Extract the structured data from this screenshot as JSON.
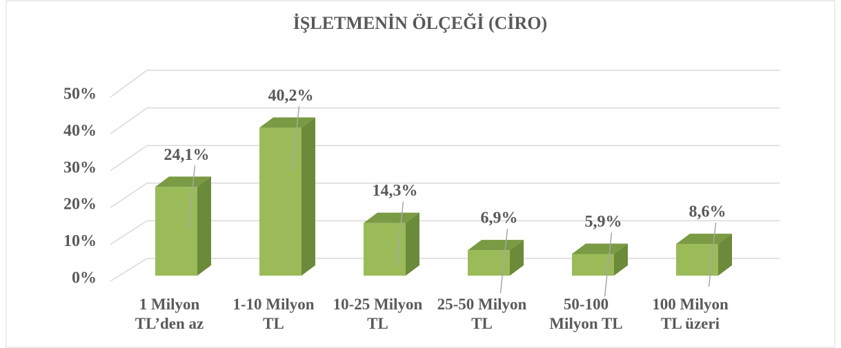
{
  "chart_data": {
    "type": "bar3d",
    "title": "İŞLETMENİN ÖLÇEĞİ (CİRO)",
    "categories": [
      "1 Milyon TL’den az",
      "1-10 Milyon TL",
      "10-25 Milyon TL",
      "25-50 Milyon TL",
      "50-100 Milyon TL",
      "100 Milyon TL üzeri"
    ],
    "values": [
      24.1,
      40.2,
      14.3,
      6.9,
      5.9,
      8.6
    ],
    "value_labels": [
      "24,1%",
      "40,2%",
      "14,3%",
      "6,9%",
      "5,9%",
      "8,6%"
    ],
    "color": "#9bbb59",
    "ylim": [
      0,
      50
    ],
    "yticks": [
      {
        "value": 0,
        "label": "0%"
      },
      {
        "value": 10,
        "label": "10%"
      },
      {
        "value": 20,
        "label": "20%"
      },
      {
        "value": 30,
        "label": "30%"
      },
      {
        "value": 40,
        "label": "40%"
      },
      {
        "value": 50,
        "label": "50%"
      }
    ],
    "grid": true
  }
}
